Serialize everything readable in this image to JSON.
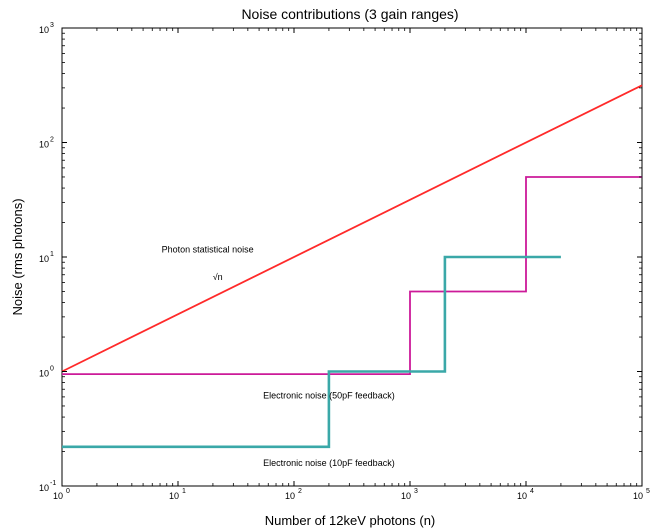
{
  "chart_data": {
    "type": "line",
    "title": "Noise contributions (3 gain ranges)",
    "xlabel": "Number of 12keV photons (n)",
    "ylabel": "Noise (rms photons)",
    "xscale": "log",
    "yscale": "log",
    "xlim": [
      1,
      100000
    ],
    "ylim": [
      0.1,
      1000
    ],
    "grid": false,
    "x_ticks": [
      {
        "value": 1,
        "base": "10",
        "exp": "0"
      },
      {
        "value": 10,
        "base": "10",
        "exp": "1"
      },
      {
        "value": 100,
        "base": "10",
        "exp": "2"
      },
      {
        "value": 1000,
        "base": "10",
        "exp": "3"
      },
      {
        "value": 10000,
        "base": "10",
        "exp": "4"
      },
      {
        "value": 100000,
        "base": "10",
        "exp": "5"
      }
    ],
    "y_ticks": [
      {
        "value": 0.1,
        "base": "10",
        "exp": "-1"
      },
      {
        "value": 1,
        "base": "10",
        "exp": "0"
      },
      {
        "value": 10,
        "base": "10",
        "exp": "1"
      },
      {
        "value": 100,
        "base": "10",
        "exp": "2"
      },
      {
        "value": 1000,
        "base": "10",
        "exp": "3"
      }
    ],
    "series": [
      {
        "color": "#ff2a2a",
        "x": [
          1,
          100000
        ],
        "y": [
          1,
          316
        ]
      },
      {
        "color": "#cc1a99",
        "x": [
          1,
          1000,
          1000,
          10000,
          10000,
          100000
        ],
        "y": [
          0.95,
          0.95,
          5,
          5,
          50,
          50
        ]
      },
      {
        "color": "#3aa8a8",
        "x": [
          1,
          200,
          200,
          2000,
          2000,
          20000
        ],
        "y": [
          0.22,
          0.22,
          1,
          1,
          10,
          10
        ]
      }
    ],
    "annotations": [
      {
        "text": "Photon statistical noise",
        "x": 18,
        "y": 11
      },
      {
        "text": "√n",
        "x": 22,
        "y": 6.3
      },
      {
        "text": "Electronic noise (50pF feedback)",
        "x": 200,
        "y": 0.58
      },
      {
        "text": "Electronic noise (10pF feedback)",
        "x": 200,
        "y": 0.15
      }
    ]
  }
}
